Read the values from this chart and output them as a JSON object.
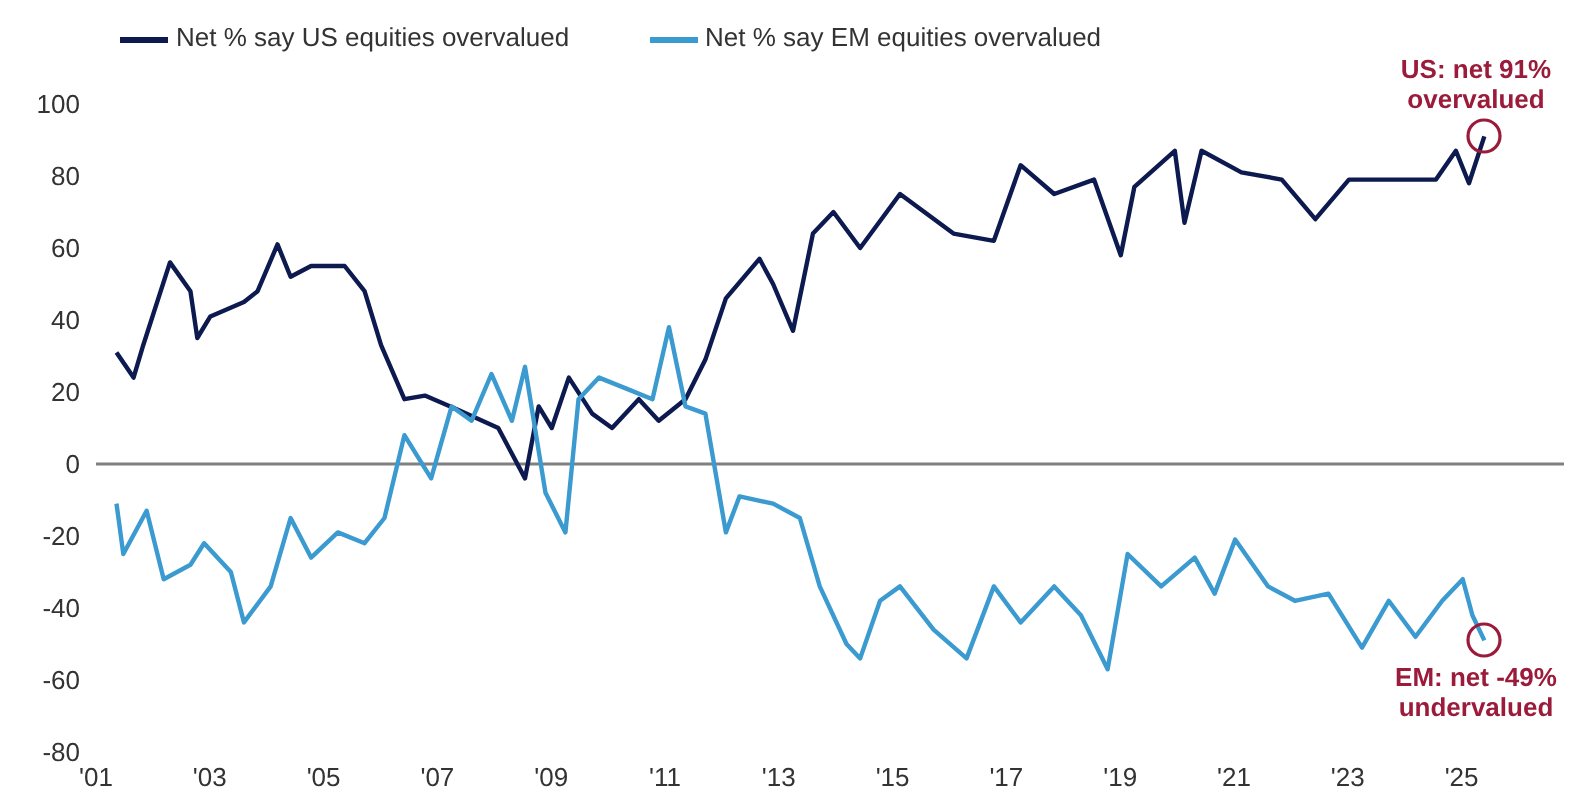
{
  "chart_data": {
    "type": "line",
    "xlim": [
      2001,
      2026.8
    ],
    "ylim": [
      -80,
      100
    ],
    "xticks": [
      {
        "value": 2001,
        "label": "'01"
      },
      {
        "value": 2003,
        "label": "'03"
      },
      {
        "value": 2005,
        "label": "'05"
      },
      {
        "value": 2007,
        "label": "'07"
      },
      {
        "value": 2009,
        "label": "'09"
      },
      {
        "value": 2011,
        "label": "'11"
      },
      {
        "value": 2013,
        "label": "'13"
      },
      {
        "value": 2015,
        "label": "'15"
      },
      {
        "value": 2017,
        "label": "'17"
      },
      {
        "value": 2019,
        "label": "'19"
      },
      {
        "value": 2021,
        "label": "'21"
      },
      {
        "value": 2023,
        "label": "'23"
      },
      {
        "value": 2025,
        "label": "'25"
      }
    ],
    "yticks": [
      -80,
      -60,
      -40,
      -20,
      0,
      20,
      40,
      60,
      80,
      100
    ],
    "grid": false,
    "legend": "top left",
    "marker": "none",
    "line_style": "solid",
    "ref_lines": [
      {
        "axis": "y",
        "value": 0,
        "color": "#808080"
      }
    ],
    "series": [
      {
        "name": "Net % say US equities overvalued",
        "color": "#0d1a4f",
        "x": [
          2001.36,
          2001.66,
          2001.83,
          2002.3,
          2002.66,
          2002.78,
          2003.01,
          2003.6,
          2003.84,
          2004.19,
          2004.42,
          2004.78,
          2005.37,
          2005.72,
          2006.01,
          2006.42,
          2006.78,
          2007.37,
          2008.07,
          2008.54,
          2008.78,
          2009.01,
          2009.31,
          2009.72,
          2010.07,
          2010.54,
          2010.89,
          2011.36,
          2011.71,
          2012.07,
          2012.66,
          2012.9,
          2013.25,
          2013.6,
          2013.96,
          2014.43,
          2015.13,
          2016.07,
          2016.78,
          2017.25,
          2017.84,
          2018.54,
          2019.01,
          2019.25,
          2019.96,
          2020.13,
          2020.43,
          2021.13,
          2021.84,
          2022.43,
          2023.02,
          2023.72,
          2024.55,
          2024.9,
          2025.13,
          2025.4
        ],
        "values": [
          31,
          24,
          33,
          56,
          48,
          35,
          41,
          45,
          48,
          61,
          52,
          55,
          55,
          48,
          33,
          18,
          19,
          15,
          10,
          -4,
          16,
          10,
          24,
          14,
          10,
          18,
          12,
          18,
          29,
          46,
          57,
          50,
          37,
          64,
          70,
          60,
          75,
          64,
          62,
          83,
          75,
          79,
          58,
          77,
          87,
          67,
          87,
          81,
          79,
          68,
          79,
          79,
          79,
          87,
          78,
          91
        ]
      },
      {
        "name": "Net % say EM equities overvalued",
        "color": "#3b9ad0",
        "x": [
          2001.36,
          2001.48,
          2001.89,
          2002.19,
          2002.66,
          2002.9,
          2003.37,
          2003.6,
          2004.07,
          2004.42,
          2004.78,
          2005.25,
          2005.72,
          2006.07,
          2006.42,
          2006.89,
          2007.25,
          2007.6,
          2007.95,
          2008.31,
          2008.54,
          2008.9,
          2009.25,
          2009.48,
          2009.84,
          2010.31,
          2010.78,
          2011.07,
          2011.36,
          2011.71,
          2012.07,
          2012.31,
          2012.9,
          2013.37,
          2013.72,
          2014.19,
          2014.43,
          2014.78,
          2015.13,
          2015.72,
          2016.3,
          2016.78,
          2017.25,
          2017.84,
          2018.31,
          2018.78,
          2019.13,
          2019.72,
          2020.31,
          2020.66,
          2021.02,
          2021.6,
          2022.07,
          2022.66,
          2023.25,
          2023.72,
          2024.19,
          2024.66,
          2025.02,
          2025.19,
          2025.4
        ],
        "values": [
          -11,
          -25,
          -13,
          -32,
          -28,
          -22,
          -30,
          -44,
          -34,
          -15,
          -26,
          -19,
          -22,
          -15,
          8,
          -4,
          16,
          12,
          25,
          12,
          27,
          -8,
          -19,
          18,
          24,
          21,
          18,
          38,
          16,
          14,
          -19,
          -9,
          -11,
          -15,
          -34,
          -50,
          -54,
          -38,
          -34,
          -46,
          -54,
          -34,
          -44,
          -34,
          -42,
          -57,
          -25,
          -34,
          -26,
          -36,
          -21,
          -34,
          -38,
          -36,
          -51,
          -38,
          -48,
          -38,
          -32,
          -42,
          -49
        ]
      }
    ],
    "annotations": [
      {
        "text": "US: net 91% overvalued",
        "x": 2025.4,
        "y": 91
      },
      {
        "text": "EM: net -49% undervalued",
        "x": 2025.4,
        "y": -49
      }
    ]
  }
}
